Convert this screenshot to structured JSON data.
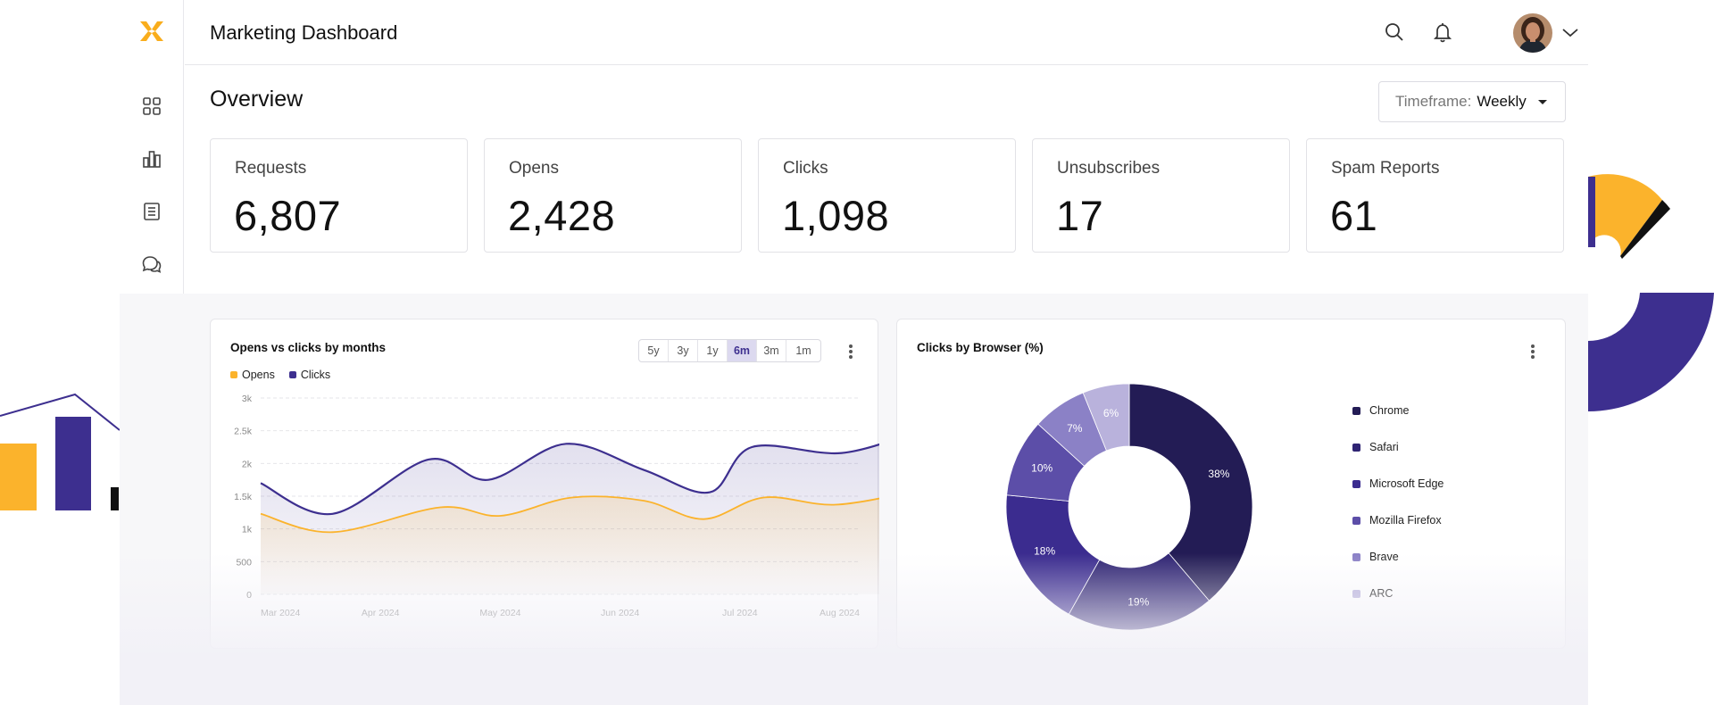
{
  "app": {
    "title": "Marketing Dashboard"
  },
  "colors": {
    "logo": "#f9ad1c",
    "opens": "#fbb32c",
    "clicks": "#3d2f8f",
    "accent_purple": "#3d2f8f",
    "accent_yellow": "#fbb32c"
  },
  "sidebar": {
    "items": [
      {
        "icon": "grid-icon"
      },
      {
        "icon": "bar-chart-icon"
      },
      {
        "icon": "document-icon"
      },
      {
        "icon": "chat-icon"
      },
      {
        "icon": "gear-icon"
      }
    ]
  },
  "header": {
    "icons": [
      "search-icon",
      "bell-icon",
      "avatar",
      "chevron-down-icon"
    ]
  },
  "overview": {
    "title": "Overview",
    "timeframe": {
      "label": "Timeframe:",
      "value": "Weekly"
    }
  },
  "stats": [
    {
      "label": "Requests",
      "value": "6,807"
    },
    {
      "label": "Opens",
      "value": "2,428"
    },
    {
      "label": "Clicks",
      "value": "1,098"
    },
    {
      "label": "Unsubscribes",
      "value": "17"
    },
    {
      "label": "Spam Reports",
      "value": "61"
    }
  ],
  "line_card": {
    "ranges": [
      {
        "label": "5y",
        "active": false
      },
      {
        "label": "3y",
        "active": false
      },
      {
        "label": "1y",
        "active": false
      },
      {
        "label": "6m",
        "active": true
      },
      {
        "label": "3m",
        "active": false
      },
      {
        "label": "1m",
        "active": false
      }
    ]
  },
  "chart_data": [
    {
      "type": "line",
      "title": "Opens vs clicks by months",
      "x_labels": [
        "Mar 2024",
        "Apr 2024",
        "May 2024",
        "Jun 2024",
        "Jul 2024",
        "Aug 2024"
      ],
      "y_ticks": [
        "0",
        "500",
        "1k",
        "1.5k",
        "2k",
        "2.5k",
        "3k"
      ],
      "ylim": [
        0,
        3000
      ],
      "grid": true,
      "legend": "top-left",
      "series": [
        {
          "name": "Opens",
          "color": "#fbb32c",
          "points": [
            [
              0,
              1230
            ],
            [
              0.6,
              950
            ],
            [
              1.5,
              1330
            ],
            [
              2,
              1200
            ],
            [
              2.6,
              1480
            ],
            [
              3.2,
              1430
            ],
            [
              3.7,
              1150
            ],
            [
              4.2,
              1480
            ],
            [
              4.8,
              1370
            ],
            [
              5.5,
              1590
            ]
          ]
        },
        {
          "name": "Clicks",
          "color": "#3d2f8f",
          "points": [
            [
              0,
              1700
            ],
            [
              0.6,
              1230
            ],
            [
              1.4,
              2060
            ],
            [
              1.9,
              1750
            ],
            [
              2.55,
              2300
            ],
            [
              3.2,
              1900
            ],
            [
              3.75,
              1560
            ],
            [
              4.1,
              2250
            ],
            [
              4.85,
              2160
            ],
            [
              5.5,
              2500
            ]
          ]
        }
      ]
    },
    {
      "type": "pie",
      "title": "Clicks by Browser (%)",
      "legend": "right",
      "slices": [
        {
          "name": "Chrome",
          "value": 38,
          "label": "38%",
          "color": "#231c55"
        },
        {
          "name": "Safari",
          "value": 19,
          "label": "19%",
          "color": "#2f2473"
        },
        {
          "name": "Microsoft Edge",
          "value": 18,
          "label": "18%",
          "color": "#3b2c8f"
        },
        {
          "name": "Mozilla Firefox",
          "value": 10,
          "label": "10%",
          "color": "#5c4ea8"
        },
        {
          "name": "Brave",
          "value": 7,
          "label": "7%",
          "color": "#8b81c6"
        },
        {
          "name": "ARC",
          "value": 6,
          "label": "6%",
          "color": "#b9b2dc"
        }
      ]
    }
  ]
}
